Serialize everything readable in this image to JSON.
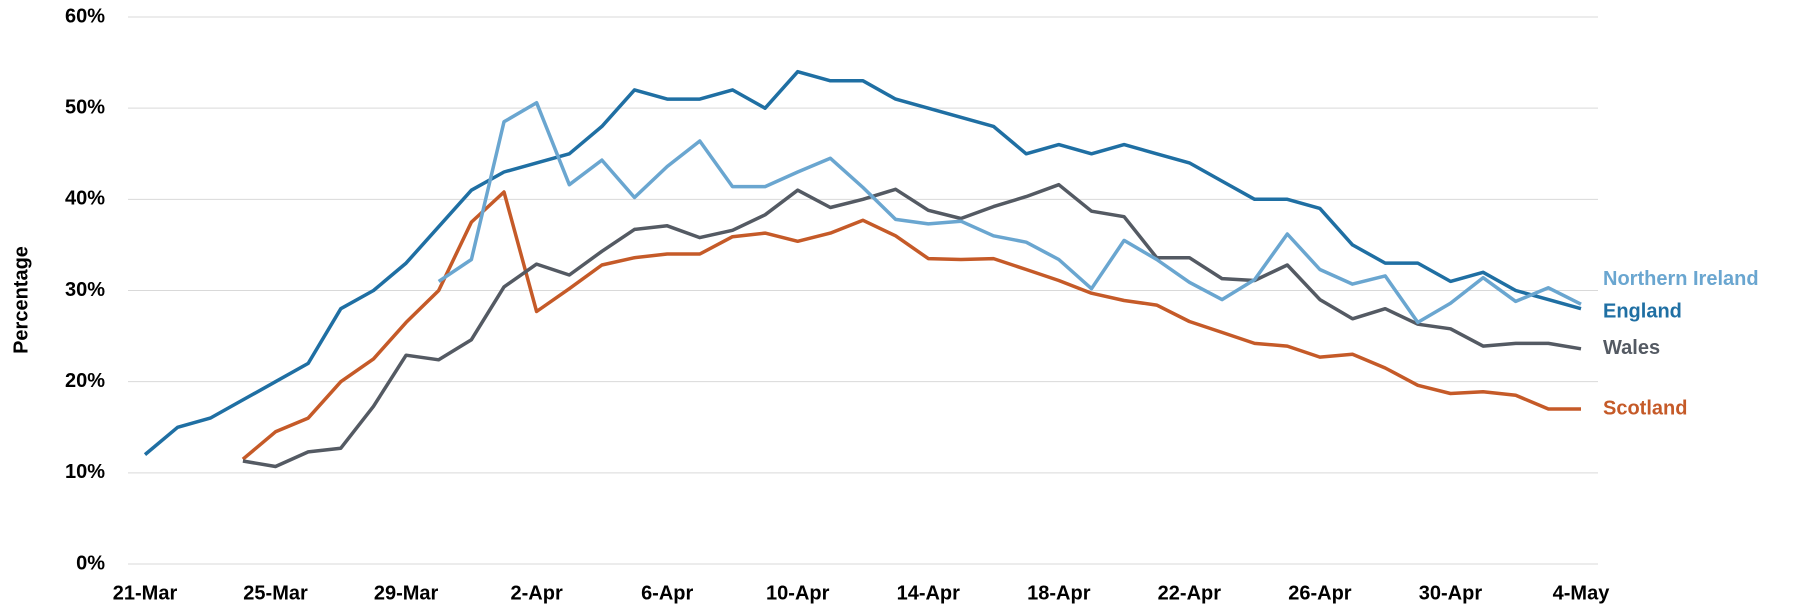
{
  "chart_data": {
    "type": "line",
    "y_label": "Percentage",
    "categories": [
      "21-Mar",
      null,
      null,
      null,
      "25-Mar",
      null,
      null,
      null,
      "29-Mar",
      null,
      null,
      null,
      "2-Apr",
      null,
      null,
      null,
      "6-Apr",
      null,
      null,
      null,
      "10-Apr",
      null,
      null,
      null,
      "14-Apr",
      null,
      null,
      null,
      "18-Apr",
      null,
      null,
      null,
      "22-Apr",
      null,
      null,
      null,
      "26-Apr",
      null,
      null,
      null,
      "30-Apr",
      null,
      null,
      null,
      "4-May"
    ],
    "ylim": [
      0,
      60
    ],
    "yticks": [
      {
        "value": 0,
        "label": "0%"
      },
      {
        "value": 10,
        "label": "10%"
      },
      {
        "value": 20,
        "label": "20%"
      },
      {
        "value": 30,
        "label": "30%"
      },
      {
        "value": 40,
        "label": "40%"
      },
      {
        "value": 50,
        "label": "50%"
      },
      {
        "value": 60,
        "label": "60%"
      }
    ],
    "grid": true,
    "series": [
      {
        "name": "England",
        "color": "#1f6fa3",
        "values": [
          12,
          15,
          16,
          18,
          20,
          22,
          28,
          30,
          33,
          37,
          41,
          43,
          44,
          45,
          48,
          52,
          51,
          51,
          52,
          50,
          54,
          53,
          53,
          51,
          50,
          49,
          48,
          45,
          46,
          45,
          46,
          45,
          44,
          42,
          40,
          40,
          39,
          35,
          33,
          33,
          31,
          32,
          30,
          29,
          28
        ]
      },
      {
        "name": "Scotland",
        "color": "#c55a28",
        "values": [
          null,
          null,
          null,
          11.5,
          14.5,
          16,
          20,
          22.5,
          26.5,
          30,
          37.5,
          40.8,
          27.7,
          30.2,
          32.8,
          33.6,
          34,
          34,
          35.9,
          36.3,
          35.4,
          36.3,
          37.7,
          36,
          33.5,
          33.4,
          33.5,
          32.3,
          31.1,
          29.7,
          28.9,
          28.4,
          26.6,
          25.4,
          24.2,
          23.9,
          22.7,
          23,
          21.5,
          19.6,
          18.7,
          18.9,
          18.5,
          17,
          17
        ]
      },
      {
        "name": "Wales",
        "color": "#545a63",
        "values": [
          null,
          null,
          null,
          11.3,
          10.7,
          12.3,
          12.7,
          17.3,
          22.9,
          22.4,
          24.6,
          30.4,
          32.9,
          31.7,
          34.3,
          36.7,
          37.1,
          35.8,
          36.6,
          38.3,
          41,
          39.1,
          40,
          41.1,
          38.8,
          37.9,
          39.2,
          40.3,
          41.6,
          38.7,
          38.1,
          33.6,
          33.6,
          31.3,
          31.1,
          32.8,
          29,
          26.9,
          28,
          26.3,
          25.8,
          23.9,
          24.2,
          24.2,
          23.6
        ]
      },
      {
        "name": "Northern Ireland",
        "color": "#6aa6d0",
        "values": [
          null,
          null,
          null,
          null,
          null,
          null,
          null,
          null,
          null,
          31,
          33.4,
          48.5,
          50.6,
          41.6,
          44.3,
          40.2,
          43.6,
          46.4,
          41.4,
          41.4,
          43,
          44.5,
          41.3,
          37.8,
          37.3,
          37.6,
          36,
          35.3,
          33.4,
          30.2,
          35.5,
          33.4,
          30.9,
          29,
          31.2,
          36.2,
          32.3,
          30.7,
          31.6,
          26.5,
          28.6,
          31.4,
          28.8,
          30.3,
          28.5
        ]
      }
    ]
  }
}
